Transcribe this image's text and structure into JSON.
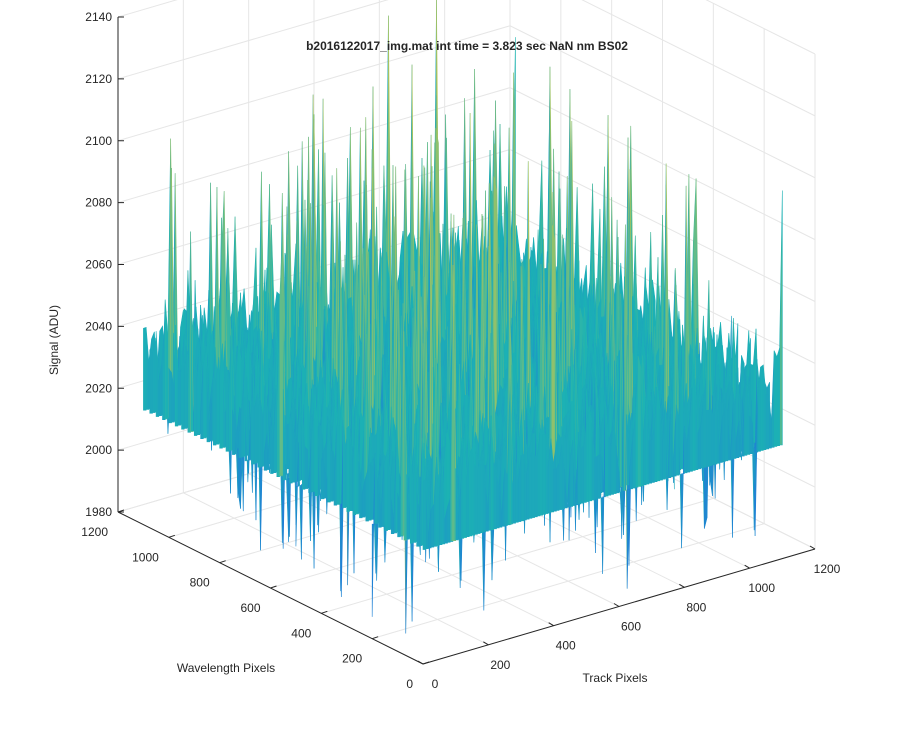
{
  "chart_data": {
    "type": "surface",
    "title": "b2016122017_img.mat int time = 3.823 sec  NaN nm BS02",
    "xlabel": "Track Pixels",
    "ylabel": "Wavelength Pixels",
    "zlabel": "Signal (ADU)",
    "xlim": [
      0,
      1200
    ],
    "ylim": [
      0,
      1200
    ],
    "zlim": [
      1980,
      2140
    ],
    "xticks": [
      "0",
      "200",
      "400",
      "600",
      "800",
      "1000",
      "1200"
    ],
    "yticks": [
      "0",
      "200",
      "400",
      "600",
      "800",
      "1000",
      "1200"
    ],
    "zticks": [
      "1980",
      "2000",
      "2020",
      "2040",
      "2060",
      "2080",
      "2100",
      "2120",
      "2140"
    ],
    "grid": true,
    "colormap": "parula",
    "surface": {
      "x_range": [
        0,
        1100
      ],
      "y_range": [
        0,
        1100
      ],
      "mean_signal": 2035,
      "min_signal": 1985,
      "max_signal": 2130,
      "noise_std": 12
    }
  },
  "colors": {
    "axis": "#262626",
    "grid": "#e6e6e6",
    "low": "#1f7fd6",
    "mid": "#1cb3b3",
    "high": "#c8c84a"
  }
}
